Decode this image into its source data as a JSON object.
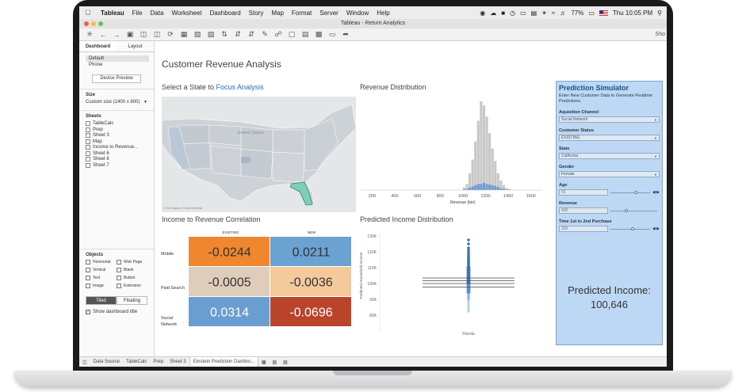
{
  "menubar": {
    "app_name": "Tableau",
    "menus": [
      "File",
      "Data",
      "Worksheet",
      "Dashboard",
      "Story",
      "Map",
      "Format",
      "Server",
      "Window",
      "Help"
    ],
    "battery": "77%",
    "clock": "Thu 10:05 PM"
  },
  "window": {
    "title": "Tableau - Return Analytics"
  },
  "toolbar": {
    "show_label": "Sho"
  },
  "left_panel": {
    "tabs": [
      "Dashboard",
      "Layout"
    ],
    "devices": [
      "Default",
      "Phone"
    ],
    "device_preview": "Device Preview",
    "size_header": "Size",
    "size_value": "Custom size (1400 x 800)",
    "sheets_header": "Sheets",
    "sheets": [
      "TableCalc",
      "Prep",
      "Sheet 3",
      "Map",
      "Income to Revenue...",
      "Sheet 6",
      "Sheet 8",
      "Sheet 7"
    ],
    "objects_header": "Objects",
    "objects": [
      "Horizontal",
      "Web Page",
      "Vertical",
      "Blank",
      "Text",
      "Button",
      "Image",
      "Extension"
    ],
    "tiled": "Tiled",
    "floating": "Floating",
    "show_title": "Show dashboard title"
  },
  "dashboard": {
    "title": "Customer Revenue Analysis",
    "map": {
      "title_prefix": "Select a State to ",
      "title_highlight": "Focus Analysis",
      "label": "United States",
      "attribution": "© 2021 Mapbox © OpenStreetMap"
    }
  },
  "revenue_chart": {
    "type": "bar",
    "title": "Revenue Distribution",
    "xlabel": "Revenue (bin)",
    "x_ticks": [
      200,
      400,
      600,
      800,
      1000,
      1200,
      1400,
      1600
    ],
    "bins": [
      1000,
      1025,
      1050,
      1075,
      1100,
      1125,
      1150,
      1175,
      1200,
      1225,
      1250,
      1275,
      1300,
      1325,
      1350,
      1375,
      1400
    ],
    "counts": [
      10,
      22,
      60,
      110,
      175,
      250,
      320,
      305,
      265,
      205,
      150,
      105,
      60,
      35,
      18,
      8,
      3
    ],
    "highlight_counts": [
      1,
      2,
      4,
      6,
      8,
      10,
      10,
      12,
      10,
      9,
      8,
      7,
      5,
      3,
      2,
      1,
      1
    ]
  },
  "correlation_chart": {
    "type": "heatmap",
    "title": "Income to Revenue Correlation",
    "columns": [
      "EXISTING",
      "NEW"
    ],
    "rows": [
      "Mobile",
      "Paid Search",
      "Social Network"
    ],
    "values": [
      [
        -0.0244,
        0.0211
      ],
      [
        -0.0005,
        -0.0036
      ],
      [
        0.0314,
        -0.0696
      ]
    ],
    "cells": [
      [
        "-0.0244",
        "0.0211"
      ],
      [
        "-0.0005",
        "-0.0036"
      ],
      [
        "0.0314",
        "-0.0696"
      ]
    ],
    "colors": [
      [
        "#f0862e",
        "#6aa2d2"
      ],
      [
        "#dfcdbb",
        "#f4c99b"
      ],
      [
        "#6b9ed0",
        "#b8452a"
      ]
    ],
    "text_colors": [
      [
        "#333333",
        "#333333"
      ],
      [
        "#333333",
        "#333333"
      ],
      [
        "#ffffff",
        "#ffffff"
      ]
    ]
  },
  "income_chart": {
    "type": "scatter",
    "title": "Predicted Income Distribution",
    "ylabel": "Predicted Household Income",
    "y_ticks": [
      "130K",
      "120K",
      "110K",
      "100K",
      "90K",
      "80K"
    ],
    "x_category": "Florida",
    "y_range": [
      80000,
      130000
    ],
    "ref_lines": [
      100000,
      101800,
      103500,
      97800
    ],
    "points_hi": [
      127500,
      125000,
      122500,
      121000,
      119500,
      118000,
      117000,
      116000,
      115000,
      114200,
      113400,
      112600,
      111800,
      111000
    ],
    "points_lo": [
      93000,
      91500,
      90000,
      88500,
      87000,
      85500,
      84000,
      82500
    ]
  },
  "prediction": {
    "title": "Prediction Simulator",
    "description": "Enter New Customer Data to Generate Realtime Predictions",
    "acquisition_label": "Aquisition Channel",
    "acquisition_value": "Social Network",
    "status_label": "Customer Status",
    "status_value": "EXISTING",
    "state_label": "State",
    "state_value": "California",
    "gender_label": "Gender",
    "gender_value": "Female",
    "age_label": "Age",
    "age_value": "55",
    "revenue_label": "Revenue",
    "revenue_value": "400",
    "time_label": "Time 1st to 2nd Purchase",
    "time_value": "265",
    "result_label": "Predicted Income:",
    "result_value": "100,646"
  },
  "tabs": [
    "Data Source",
    "TableCalc",
    "Prep",
    "Sheet 3",
    "Einstein Prediction Dashbo..."
  ],
  "colors": {
    "accent": "#2a6ab3",
    "panel_bg": "#bcd8f4",
    "histogram": "#c8c8c8",
    "highlight": "#6f9bd1"
  }
}
